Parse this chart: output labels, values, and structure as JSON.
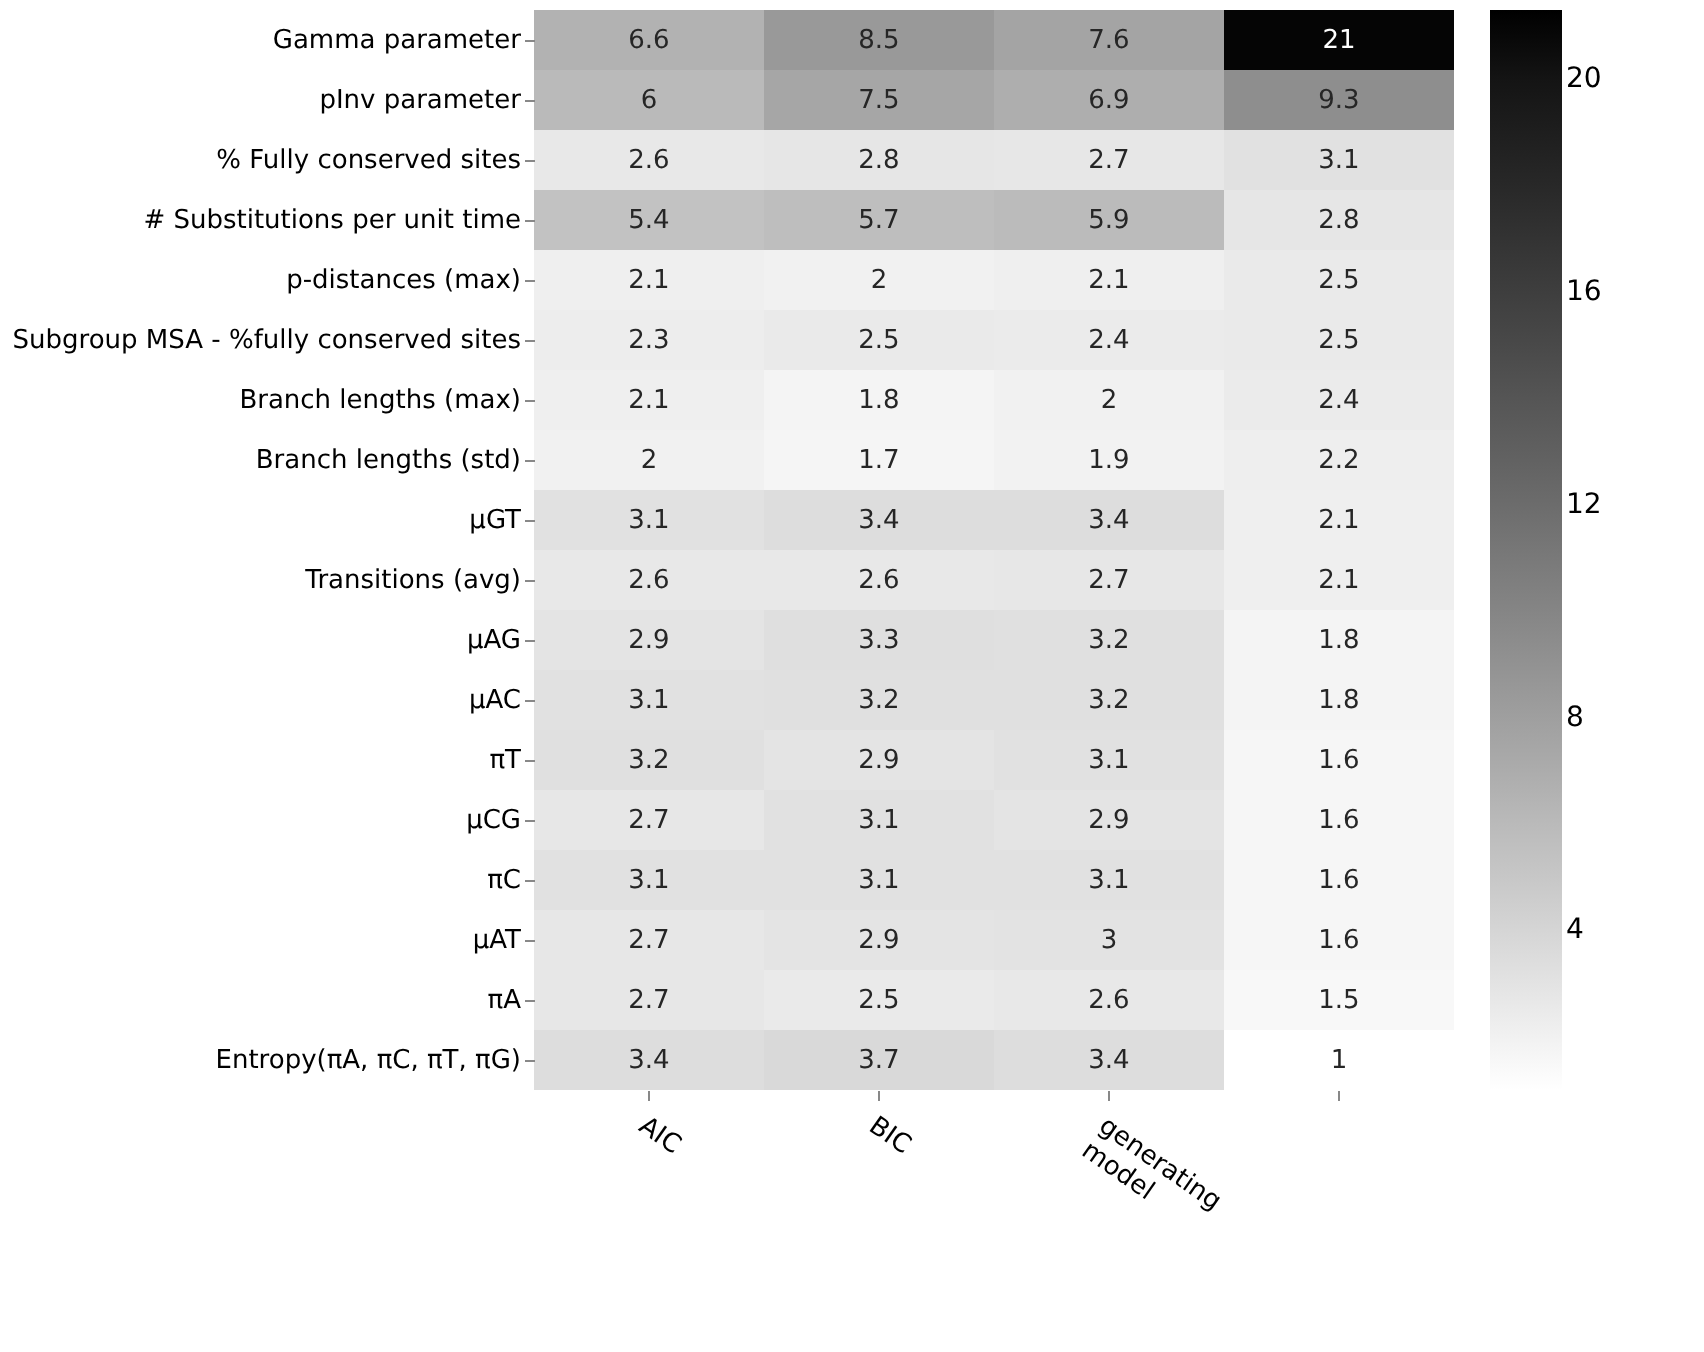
{
  "chart_data": {
    "type": "heatmap",
    "categories": [
      "AIC",
      "BIC",
      "generating\nmodel",
      null
    ],
    "y_categories": [
      "Gamma parameter",
      "pInv parameter",
      "% Fully conserved sites",
      "# Substitutions per unit time",
      "p-distances (max)",
      "Subgroup MSA - %fully conserved sites",
      "Branch lengths (max)",
      "Branch lengths (std)",
      "μGT",
      "Transitions (avg)",
      "μAG",
      "μAC",
      "πT",
      "μCG",
      "πC",
      "μAT",
      "πA",
      "Entropy(πA, πC, πT, πG)"
    ],
    "cells": [
      [
        6.6,
        8.5,
        7.6,
        21
      ],
      [
        6,
        7.5,
        6.9,
        9.3
      ],
      [
        2.6,
        2.8,
        2.7,
        3.1
      ],
      [
        5.4,
        5.7,
        5.9,
        2.8
      ],
      [
        2.1,
        2,
        2.1,
        2.5
      ],
      [
        2.3,
        2.5,
        2.4,
        2.5
      ],
      [
        2.1,
        1.8,
        2,
        2.4
      ],
      [
        2,
        1.7,
        1.9,
        2.2
      ],
      [
        3.1,
        3.4,
        3.4,
        2.1
      ],
      [
        2.6,
        2.6,
        2.7,
        2.1
      ],
      [
        2.9,
        3.3,
        3.2,
        1.8
      ],
      [
        3.1,
        3.2,
        3.2,
        1.8
      ],
      [
        3.2,
        2.9,
        3.1,
        1.6
      ],
      [
        2.7,
        3.1,
        2.9,
        1.6
      ],
      [
        3.1,
        3.1,
        3.1,
        1.6
      ],
      [
        2.7,
        2.9,
        3,
        1.6
      ],
      [
        2.7,
        2.5,
        2.6,
        1.5
      ],
      [
        3.4,
        3.7,
        3.4,
        1
      ]
    ],
    "clim": [
      1,
      21.3
    ],
    "cticks": [
      4,
      8,
      12,
      16,
      20
    ],
    "colors": [
      "#ffffff",
      "#000000"
    ],
    "data_labels": true
  }
}
